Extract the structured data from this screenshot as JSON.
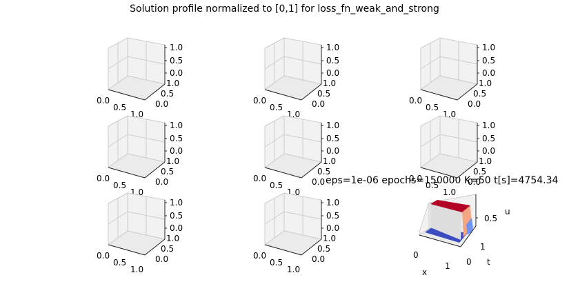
{
  "figure": {
    "suptitle": "Solution profile normalized to [0,1] for loss_fn_weak_and_strong"
  },
  "chart_data": [
    {
      "type": "surface",
      "subplot": "1-1",
      "empty": true,
      "xticks": [
        "0.0",
        "0.5",
        "1.0"
      ],
      "yticks": [
        "0.0",
        "0.5",
        "1.0"
      ],
      "zticks": [
        "0.0",
        "0.5",
        "1.0"
      ]
    },
    {
      "type": "surface",
      "subplot": "1-2",
      "empty": true,
      "xticks": [
        "0.0",
        "0.5",
        "1.0"
      ],
      "yticks": [
        "0.0",
        "0.5",
        "1.0"
      ],
      "zticks": [
        "0.0",
        "0.5",
        "1.0"
      ]
    },
    {
      "type": "surface",
      "subplot": "1-3",
      "empty": true,
      "xticks": [
        "0.0",
        "0.5",
        "1.0"
      ],
      "yticks": [
        "0.0",
        "0.5",
        "1.0"
      ],
      "zticks": [
        "0.0",
        "0.5",
        "1.0"
      ]
    },
    {
      "type": "surface",
      "subplot": "2-1",
      "empty": true,
      "xticks": [
        "0.0",
        "0.5",
        "1.0"
      ],
      "yticks": [
        "0.0",
        "0.5",
        "1.0"
      ],
      "zticks": [
        "0.0",
        "0.5",
        "1.0"
      ]
    },
    {
      "type": "surface",
      "subplot": "2-2",
      "empty": true,
      "xticks": [
        "0.0",
        "0.5",
        "1.0"
      ],
      "yticks": [
        "0.0",
        "0.5",
        "1.0"
      ],
      "zticks": [
        "0.0",
        "0.5",
        "1.0"
      ]
    },
    {
      "type": "surface",
      "subplot": "2-3",
      "empty": true,
      "xticks": [
        "0.0",
        "0.5",
        "1.0"
      ],
      "yticks": [
        "0.0",
        "0.5",
        "1.0"
      ],
      "zticks": [
        "0.0",
        "0.5",
        "1.0"
      ]
    },
    {
      "type": "surface",
      "subplot": "3-1",
      "empty": true,
      "xticks": [
        "0.0",
        "0.5",
        "1.0"
      ],
      "yticks": [
        "0.0",
        "0.5",
        "1.0"
      ],
      "zticks": [
        "0.0",
        "0.5",
        "1.0"
      ]
    },
    {
      "type": "surface",
      "subplot": "3-2",
      "empty": true,
      "xticks": [
        "0.0",
        "0.5",
        "1.0"
      ],
      "yticks": [
        "0.0",
        "0.5",
        "1.0"
      ],
      "zticks": [
        "0.0",
        "0.5",
        "1.0"
      ]
    },
    {
      "type": "surface",
      "subplot": "3-3",
      "empty": false,
      "title": "eps=1e-06 epochs=150000 K=50 t[s]=4754.34",
      "xlabel": "x",
      "ylabel": "t",
      "zlabel": "u",
      "xticks": [
        "0",
        "1"
      ],
      "yticks": [
        "0",
        "1"
      ],
      "zticks": [
        "0.5"
      ],
      "xlim": [
        0,
        1
      ],
      "ylim": [
        0,
        1
      ],
      "zlim": [
        0,
        1
      ],
      "colormap": "coolwarm",
      "surface": {
        "description_values": {
          "x": [
            0,
            0.2,
            0.4,
            0.6,
            0.8,
            1.0
          ],
          "u_low": 0.0,
          "u_high": 1.0,
          "step_at_x": 0.05
        }
      }
    }
  ],
  "colors": {
    "pane": "#f2f2f2",
    "grid": "#cccccc",
    "high": "#b40426",
    "low": "#3b4cc0",
    "mid": "#dddddd"
  }
}
